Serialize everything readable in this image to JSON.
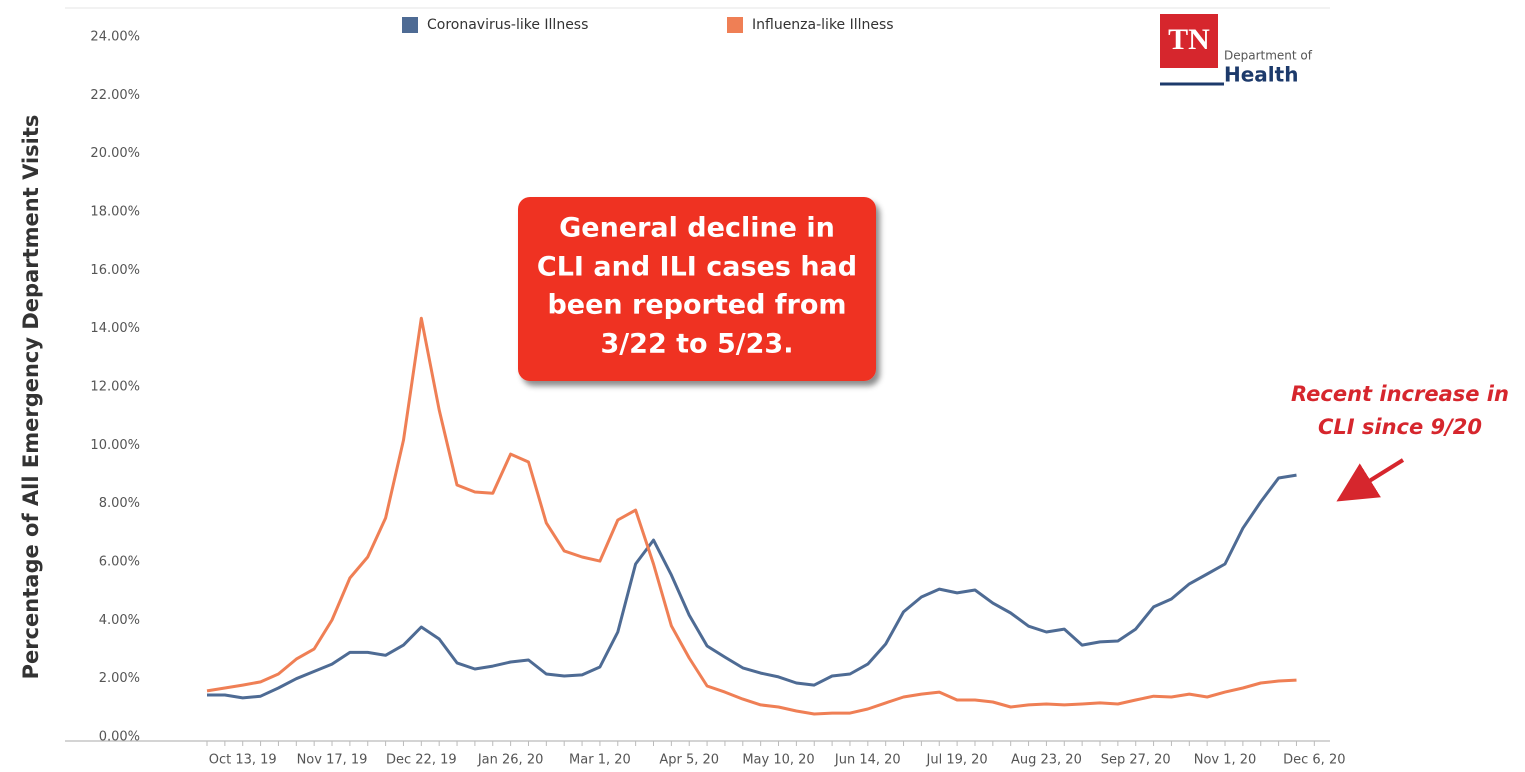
{
  "chart_data": {
    "type": "line",
    "y_axis_label": "Percentage of All Emergency Department Visits",
    "categories": [
      null,
      null,
      "Oct 13, 19",
      null,
      null,
      null,
      null,
      "Nov 17, 19",
      null,
      null,
      null,
      null,
      "Dec 22, 19",
      null,
      null,
      null,
      null,
      "Jan 26, 20",
      null,
      null,
      null,
      null,
      "Mar 1, 20",
      null,
      null,
      null,
      null,
      "Apr 5, 20",
      null,
      null,
      null,
      null,
      "May 10, 20",
      null,
      null,
      null,
      null,
      "Jun 14, 20",
      null,
      null,
      null,
      null,
      "Jul 19, 20",
      null,
      null,
      null,
      null,
      "Aug 23, 20",
      null,
      null,
      null,
      null,
      "Sep 27, 20",
      null,
      null,
      null,
      null,
      "Nov 1, 20",
      null,
      null,
      null,
      null,
      "Dec 6, 20"
    ],
    "series": [
      {
        "name": "Coronavirus-like Illness",
        "color": "#4e6b94",
        "values": [
          1.44,
          1.44,
          1.34,
          1.4,
          1.68,
          2.0,
          2.25,
          2.5,
          2.9,
          2.9,
          2.8,
          3.15,
          3.77,
          3.36,
          2.54,
          2.33,
          2.43,
          2.57,
          2.64,
          2.16,
          2.09,
          2.13,
          2.4,
          3.6,
          5.93,
          6.75,
          5.55,
          4.18,
          3.12,
          2.74,
          2.37,
          2.19,
          2.06,
          1.85,
          1.78,
          2.09,
          2.16,
          2.5,
          3.19,
          4.29,
          4.8,
          5.07,
          4.94,
          5.04,
          4.59,
          4.25,
          3.8,
          3.6,
          3.7,
          3.15,
          3.26,
          3.29,
          3.7,
          4.46,
          4.73,
          5.25,
          5.59,
          5.93,
          7.16,
          8.06,
          8.88,
          8.98,
          null
        ]
      },
      {
        "name": "Influenza-like Illness",
        "color": "#ef7f55",
        "values": [
          1.58,
          1.68,
          1.78,
          1.89,
          2.16,
          2.67,
          3.02,
          4.01,
          5.45,
          6.17,
          7.51,
          10.18,
          14.36,
          11.21,
          8.64,
          8.4,
          8.36,
          9.7,
          9.43,
          7.34,
          6.38,
          6.17,
          6.03,
          7.44,
          7.78,
          5.93,
          3.81,
          2.71,
          1.75,
          1.54,
          1.3,
          1.1,
          1.03,
          0.89,
          0.79,
          0.82,
          0.82,
          0.96,
          1.17,
          1.37,
          1.47,
          1.54,
          1.27,
          1.27,
          1.2,
          1.03,
          1.1,
          1.13,
          1.1,
          1.13,
          1.17,
          1.13,
          1.27,
          1.4,
          1.37,
          1.47,
          1.37,
          1.54,
          1.68,
          1.85,
          1.92,
          1.95,
          null
        ]
      }
    ],
    "ylim": [
      0,
      24
    ],
    "yticks": [
      {
        "value": 0,
        "label": "0.00%"
      },
      {
        "value": 2,
        "label": "2.00%"
      },
      {
        "value": 4,
        "label": "4.00%"
      },
      {
        "value": 6,
        "label": "6.00%"
      },
      {
        "value": 8,
        "label": "8.00%"
      },
      {
        "value": 10,
        "label": "10.00%"
      },
      {
        "value": 12,
        "label": "12.00%"
      },
      {
        "value": 14,
        "label": "14.00%"
      },
      {
        "value": 16,
        "label": "16.00%"
      },
      {
        "value": 18,
        "label": "18.00%"
      },
      {
        "value": 20,
        "label": "20.00%"
      },
      {
        "value": 22,
        "label": "22.00%"
      },
      {
        "value": 24,
        "label": "24.00%"
      }
    ],
    "grid": false,
    "legend": "top",
    "annotations": [
      {
        "lines": [
          "General decline in",
          "CLI and ILI cases had",
          "been reported from",
          "3/22 to 5/23."
        ]
      },
      {
        "lines": [
          "Recent increase in",
          "CLI since 9/20"
        ]
      }
    ],
    "logo": {
      "mark": "TN",
      "line1": "Department of",
      "line2": "Health"
    }
  }
}
